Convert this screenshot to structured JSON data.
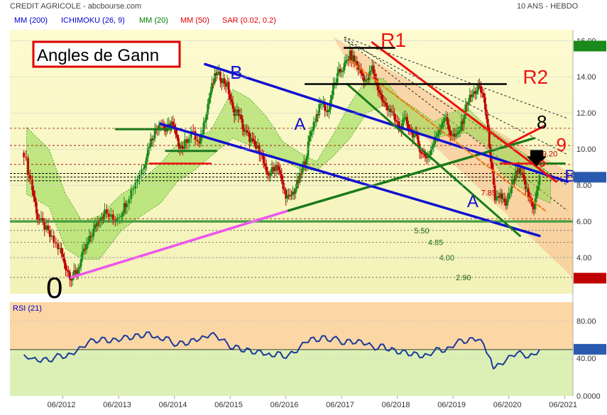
{
  "header": {
    "title": "CREDIT AGRICOLE - abcbourse.com",
    "period": "10 ANS - HEBDO"
  },
  "legend": [
    {
      "label": "MM (200)",
      "color": "#0000cc"
    },
    {
      "label": "ICHIMOKU (26, 9)",
      "color": "#0000cc"
    },
    {
      "label": "MM (20)",
      "color": "#008000"
    },
    {
      "label": "MM (50)",
      "color": "#e00000"
    },
    {
      "label": "SAR (0.02, 0.2)",
      "color": "#e00000"
    }
  ],
  "annotation_title": "Angles de Gann",
  "chart_data": [
    {
      "type": "candlestick",
      "title": "CREDIT AGRICOLE - abcbourse.com",
      "ylim": [
        2,
        16.6
      ],
      "y_ticks": [
        "16.00",
        "14.00",
        "12.00",
        "10.00",
        "8.00",
        "6.00",
        "4.00"
      ],
      "x_ticks": [
        "06/2012",
        "06/2013",
        "06/2014",
        "06/2015",
        "06/2016",
        "06/2017",
        "06/2018",
        "06/2019",
        "06/2020",
        "06/2021"
      ],
      "last_price": "8.424",
      "max_label": "15.68",
      "min_label": "2.840",
      "series": [
        {
          "values": [
            [
              2011.75,
              9.8
            ],
            [
              2011.9,
              7.8
            ],
            [
              2012.0,
              6.2
            ],
            [
              2012.12,
              5.7
            ],
            [
              2012.25,
              5.0
            ],
            [
              2012.4,
              4.4
            ],
            [
              2012.5,
              3.5
            ],
            [
              2012.6,
              2.9
            ],
            [
              2012.7,
              3.2
            ],
            [
              2012.8,
              4.1
            ],
            [
              2012.9,
              4.8
            ],
            [
              2013.0,
              5.5
            ],
            [
              2013.1,
              6.2
            ],
            [
              2013.2,
              6.5
            ],
            [
              2013.35,
              6.1
            ],
            [
              2013.5,
              6.5
            ],
            [
              2013.6,
              7.2
            ],
            [
              2013.75,
              8.2
            ],
            [
              2013.9,
              9.1
            ],
            [
              2014.0,
              10.3
            ],
            [
              2014.1,
              11.0
            ],
            [
              2014.2,
              11.6
            ],
            [
              2014.3,
              11.0
            ],
            [
              2014.4,
              11.5
            ],
            [
              2014.5,
              10.4
            ],
            [
              2014.6,
              10.1
            ],
            [
              2014.75,
              11.0
            ],
            [
              2014.9,
              10.2
            ],
            [
              2015.0,
              11.8
            ],
            [
              2015.1,
              13.2
            ],
            [
              2015.2,
              14.2
            ],
            [
              2015.3,
              13.9
            ],
            [
              2015.4,
              13.5
            ],
            [
              2015.5,
              12.1
            ],
            [
              2015.6,
              12.0
            ],
            [
              2015.7,
              11.0
            ],
            [
              2015.8,
              10.6
            ],
            [
              2015.9,
              10.1
            ],
            [
              2016.0,
              9.9
            ],
            [
              2016.1,
              8.5
            ],
            [
              2016.2,
              8.8
            ],
            [
              2016.3,
              9.2
            ],
            [
              2016.4,
              7.8
            ],
            [
              2016.5,
              7.2
            ],
            [
              2016.6,
              7.7
            ],
            [
              2016.7,
              8.4
            ],
            [
              2016.8,
              9.4
            ],
            [
              2016.9,
              11.0
            ],
            [
              2017.0,
              11.9
            ],
            [
              2017.1,
              12.6
            ],
            [
              2017.2,
              12.0
            ],
            [
              2017.3,
              13.4
            ],
            [
              2017.4,
              14.2
            ],
            [
              2017.5,
              14.6
            ],
            [
              2017.6,
              15.2
            ],
            [
              2017.7,
              14.8
            ],
            [
              2017.8,
              14.2
            ],
            [
              2017.9,
              13.7
            ],
            [
              2018.0,
              14.5
            ],
            [
              2018.1,
              13.4
            ],
            [
              2018.2,
              12.5
            ],
            [
              2018.3,
              12.3
            ],
            [
              2018.4,
              11.6
            ],
            [
              2018.5,
              11.2
            ],
            [
              2018.6,
              11.6
            ],
            [
              2018.7,
              11.0
            ],
            [
              2018.8,
              10.5
            ],
            [
              2018.9,
              9.7
            ],
            [
              2019.0,
              9.6
            ],
            [
              2019.1,
              10.3
            ],
            [
              2019.2,
              11.2
            ],
            [
              2019.3,
              11.8
            ],
            [
              2019.4,
              10.9
            ],
            [
              2019.5,
              10.6
            ],
            [
              2019.6,
              11.3
            ],
            [
              2019.7,
              12.6
            ],
            [
              2019.8,
              13.0
            ],
            [
              2019.9,
              13.4
            ],
            [
              2020.0,
              12.9
            ],
            [
              2020.1,
              10.3
            ],
            [
              2020.2,
              7.0
            ],
            [
              2020.3,
              7.5
            ],
            [
              2020.4,
              6.8
            ],
            [
              2020.5,
              7.9
            ],
            [
              2020.6,
              8.8
            ],
            [
              2020.7,
              8.4
            ],
            [
              2020.8,
              7.4
            ],
            [
              2020.9,
              6.8
            ],
            [
              2021.0,
              8.4
            ]
          ]
        }
      ],
      "ichimoku_cloud": [
        [
          2011.8,
          11.2,
          7.5
        ],
        [
          2012.2,
          10.0,
          6.8
        ],
        [
          2012.5,
          7.5,
          4.5
        ],
        [
          2012.8,
          6.0,
          3.9
        ],
        [
          2013.1,
          6.3,
          3.9
        ],
        [
          2013.5,
          7.5,
          5.5
        ],
        [
          2013.8,
          8.1,
          6.2
        ],
        [
          2014.2,
          9.2,
          7.0
        ],
        [
          2014.5,
          10.3,
          8.2
        ],
        [
          2014.8,
          10.6,
          8.8
        ],
        [
          2015.1,
          11.0,
          9.6
        ],
        [
          2015.5,
          13.3,
          10.6
        ],
        [
          2015.8,
          12.8,
          10.2
        ],
        [
          2016.1,
          11.8,
          9.8
        ],
        [
          2016.4,
          10.4,
          9.4
        ],
        [
          2016.7,
          9.8,
          8.9
        ],
        [
          2017.0,
          9.3,
          8.8
        ],
        [
          2017.3,
          10.8,
          9.6
        ],
        [
          2017.6,
          12.5,
          10.6
        ],
        [
          2017.9,
          13.9,
          12.0
        ],
        [
          2018.2,
          13.9,
          12.4
        ],
        [
          2018.5,
          12.8,
          11.6
        ],
        [
          2018.8,
          12.2,
          10.8
        ],
        [
          2019.1,
          11.5,
          10.6
        ],
        [
          2019.4,
          12.0,
          10.8
        ],
        [
          2019.7,
          12.3,
          10.9
        ],
        [
          2020.0,
          11.4,
          10.3
        ],
        [
          2020.3,
          10.7,
          8.7
        ],
        [
          2020.6,
          10.0,
          8.0
        ],
        [
          2020.9,
          9.4,
          7.4
        ],
        [
          2021.2,
          8.6,
          7.0
        ]
      ],
      "annotations": {
        "levels": [
          "5.50",
          "4.85",
          "4.00",
          "2.90",
          "7.85",
          "9.20"
        ],
        "labels": [
          "R1",
          "R2",
          "8",
          "9",
          "A",
          "A",
          "B",
          "B",
          "0"
        ]
      }
    },
    {
      "type": "line",
      "title": "RSI (21)",
      "ylim": [
        0,
        100
      ],
      "y_ticks": [
        "80.00",
        "40.00",
        "0.0000"
      ],
      "last_value": "49.35",
      "series": [
        {
          "name": "RSI (21)",
          "values": [
            [
              2011.75,
              44
            ],
            [
              2011.9,
              40
            ],
            [
              2012.0,
              37
            ],
            [
              2012.1,
              40
            ],
            [
              2012.2,
              37
            ],
            [
              2012.3,
              41
            ],
            [
              2012.4,
              44
            ],
            [
              2012.5,
              41
            ],
            [
              2012.6,
              45
            ],
            [
              2012.7,
              48
            ],
            [
              2012.8,
              52
            ],
            [
              2012.9,
              57
            ],
            [
              2013.0,
              60
            ],
            [
              2013.1,
              58
            ],
            [
              2013.2,
              62
            ],
            [
              2013.3,
              57
            ],
            [
              2013.4,
              61
            ],
            [
              2013.5,
              60
            ],
            [
              2013.6,
              64
            ],
            [
              2013.7,
              61
            ],
            [
              2013.8,
              66
            ],
            [
              2013.9,
              63
            ],
            [
              2014.0,
              68
            ],
            [
              2014.1,
              62
            ],
            [
              2014.2,
              60
            ],
            [
              2014.3,
              63
            ],
            [
              2014.4,
              57
            ],
            [
              2014.5,
              54
            ],
            [
              2014.6,
              58
            ],
            [
              2014.7,
              55
            ],
            [
              2014.8,
              61
            ],
            [
              2014.9,
              60
            ],
            [
              2015.0,
              63
            ],
            [
              2015.1,
              66
            ],
            [
              2015.2,
              64
            ],
            [
              2015.3,
              60
            ],
            [
              2015.4,
              56
            ],
            [
              2015.5,
              50
            ],
            [
              2015.6,
              53
            ],
            [
              2015.7,
              47
            ],
            [
              2015.8,
              50
            ],
            [
              2015.9,
              45
            ],
            [
              2016.0,
              48
            ],
            [
              2016.1,
              44
            ],
            [
              2016.2,
              42
            ],
            [
              2016.3,
              47
            ],
            [
              2016.4,
              41
            ],
            [
              2016.5,
              44
            ],
            [
              2016.6,
              46
            ],
            [
              2016.7,
              52
            ],
            [
              2016.8,
              57
            ],
            [
              2016.9,
              62
            ],
            [
              2017.0,
              58
            ],
            [
              2017.1,
              64
            ],
            [
              2017.2,
              59
            ],
            [
              2017.3,
              62
            ],
            [
              2017.4,
              60
            ],
            [
              2017.5,
              55
            ],
            [
              2017.6,
              60
            ],
            [
              2017.7,
              56
            ],
            [
              2017.8,
              59
            ],
            [
              2017.9,
              55
            ],
            [
              2018.0,
              53
            ],
            [
              2018.1,
              50
            ],
            [
              2018.2,
              55
            ],
            [
              2018.3,
              48
            ],
            [
              2018.4,
              50
            ],
            [
              2018.5,
              45
            ],
            [
              2018.6,
              48
            ],
            [
              2018.7,
              43
            ],
            [
              2018.8,
              46
            ],
            [
              2018.9,
              41
            ],
            [
              2019.0,
              44
            ],
            [
              2019.1,
              47
            ],
            [
              2019.2,
              51
            ],
            [
              2019.3,
              47
            ],
            [
              2019.4,
              52
            ],
            [
              2019.5,
              56
            ],
            [
              2019.6,
              60
            ],
            [
              2019.7,
              57
            ],
            [
              2019.8,
              62
            ],
            [
              2019.9,
              60
            ],
            [
              2020.0,
              55
            ],
            [
              2020.1,
              42
            ],
            [
              2020.15,
              33
            ],
            [
              2020.2,
              30
            ],
            [
              2020.3,
              34
            ],
            [
              2020.4,
              38
            ],
            [
              2020.5,
              43
            ],
            [
              2020.6,
              46
            ],
            [
              2020.7,
              45
            ],
            [
              2020.8,
              41
            ],
            [
              2020.9,
              44
            ],
            [
              2021.0,
              49.35
            ]
          ]
        }
      ]
    }
  ]
}
